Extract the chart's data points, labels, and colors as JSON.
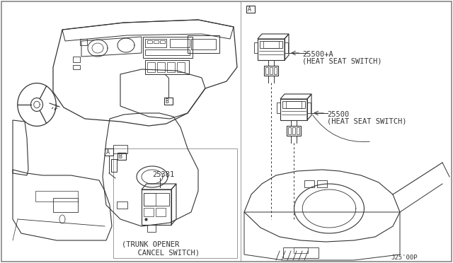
{
  "bg_color": "#ffffff",
  "line_color": "#333333",
  "border_color": "#666666",
  "label_A_left": "A",
  "label_B_left": "B",
  "label_A_right": "A",
  "part_25500A": "25500+A",
  "part_25500A_desc": "(HEAT SEAT SWITCH)",
  "part_25500": "25500",
  "part_25500_desc": "(HEAT SEAT SWITCH)",
  "part_25381": "25381",
  "part_25381_desc1": "(TRUNK OPENER",
  "part_25381_desc2": "  CANCEL SWITCH)",
  "footer": "J25'00P",
  "figsize": [
    6.4,
    3.72
  ],
  "dpi": 100
}
